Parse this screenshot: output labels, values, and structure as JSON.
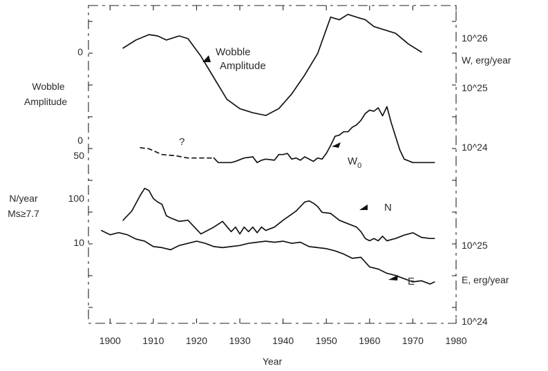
{
  "chart_data": {
    "type": "line",
    "xlabel": "Year",
    "xlim": [
      1895,
      1980
    ],
    "xticks": [
      1900,
      1910,
      1920,
      1930,
      1940,
      1950,
      1960,
      1970,
      1980
    ],
    "xtick_labels": [
      "1900",
      "1910",
      "1920",
      "1930",
      "1940",
      "1950",
      "1960",
      "1970",
      "1980"
    ],
    "left_axis": {
      "groups": [
        {
          "title": [
            "Wobble",
            "Amplitude"
          ],
          "ticks": [
            "0",
            "0"
          ]
        },
        {
          "title": [
            "N/year",
            "Ms≥7.7"
          ],
          "ticks": [
            "50",
            "100",
            "10"
          ]
        }
      ]
    },
    "right_axis": {
      "groups": [
        {
          "title": "W, erg/year",
          "ticks": [
            "10^26",
            "10^25",
            "10^24"
          ]
        },
        {
          "title": "E, erg/year",
          "ticks": [
            "10^25",
            "10^24"
          ]
        }
      ]
    },
    "series": [
      {
        "name": "Wobble Amplitude",
        "label_lines": [
          "Wobble",
          "Amplitude"
        ],
        "x": [
          1903,
          1906,
          1909,
          1911,
          1913,
          1916,
          1918,
          1921,
          1924,
          1927,
          1930,
          1933,
          1936,
          1939,
          1942,
          1945,
          1948,
          1951,
          1953,
          1955,
          1957,
          1959,
          1961,
          1963,
          1966,
          1969,
          1972
        ],
        "y": [
          0.72,
          0.78,
          0.82,
          0.81,
          0.78,
          0.81,
          0.79,
          0.66,
          0.5,
          0.34,
          0.27,
          0.24,
          0.22,
          0.27,
          0.38,
          0.52,
          0.68,
          0.95,
          0.93,
          0.97,
          0.95,
          0.93,
          0.88,
          0.86,
          0.83,
          0.75,
          0.69
        ]
      },
      {
        "name": "Wo",
        "label": "W",
        "label_sub": "0",
        "uncertain_label": "?",
        "x_dashed_end": 1924,
        "x": [
          1907,
          1909,
          1912,
          1915,
          1918,
          1921,
          1924,
          1925,
          1928,
          1929,
          1931,
          1933,
          1934,
          1935,
          1936,
          1938,
          1939,
          1940,
          1941,
          1942,
          1943,
          1944,
          1945,
          1946,
          1947,
          1948,
          1949,
          1950,
          1951,
          1952,
          1953,
          1954,
          1955,
          1956,
          1957,
          1958,
          1959,
          1960,
          1961,
          1962,
          1963,
          1964,
          1965,
          1967,
          1968,
          1970,
          1972,
          1975
        ],
        "y": [
          0.28,
          0.27,
          0.22,
          0.21,
          0.19,
          0.19,
          0.19,
          0.15,
          0.15,
          0.16,
          0.19,
          0.2,
          0.15,
          0.17,
          0.18,
          0.17,
          0.22,
          0.22,
          0.23,
          0.18,
          0.19,
          0.17,
          0.2,
          0.18,
          0.16,
          0.19,
          0.18,
          0.23,
          0.3,
          0.38,
          0.39,
          0.42,
          0.42,
          0.46,
          0.48,
          0.52,
          0.58,
          0.61,
          0.6,
          0.63,
          0.56,
          0.64,
          0.5,
          0.26,
          0.18,
          0.15,
          0.15,
          0.15
        ]
      },
      {
        "name": "N",
        "label": "N",
        "x": [
          1903,
          1905,
          1907,
          1908,
          1909,
          1910,
          1911,
          1912,
          1913,
          1914,
          1916,
          1918,
          1921,
          1924,
          1926,
          1928,
          1929,
          1930,
          1931,
          1932,
          1933,
          1934,
          1935,
          1936,
          1938,
          1940,
          1943,
          1945,
          1946,
          1947,
          1948,
          1949,
          1951,
          1953,
          1955,
          1957,
          1958,
          1959,
          1960,
          1961,
          1962,
          1963,
          1964,
          1966,
          1968,
          1970,
          1972,
          1974,
          1975
        ],
        "y": [
          0.28,
          0.36,
          0.5,
          0.56,
          0.54,
          0.47,
          0.44,
          0.42,
          0.32,
          0.3,
          0.27,
          0.28,
          0.16,
          0.22,
          0.27,
          0.18,
          0.22,
          0.16,
          0.22,
          0.18,
          0.22,
          0.17,
          0.22,
          0.19,
          0.22,
          0.28,
          0.36,
          0.44,
          0.45,
          0.43,
          0.4,
          0.35,
          0.34,
          0.28,
          0.25,
          0.22,
          0.18,
          0.12,
          0.1,
          0.12,
          0.1,
          0.14,
          0.1,
          0.12,
          0.15,
          0.17,
          0.13,
          0.12,
          0.12
        ]
      },
      {
        "name": "E",
        "label": "E",
        "x": [
          1898,
          1900,
          1902,
          1904,
          1906,
          1908,
          1910,
          1912,
          1914,
          1916,
          1918,
          1920,
          1922,
          1924,
          1926,
          1928,
          1930,
          1932,
          1934,
          1936,
          1938,
          1940,
          1942,
          1944,
          1946,
          1948,
          1950,
          1952,
          1954,
          1956,
          1958,
          1960,
          1962,
          1964,
          1966,
          1968,
          1970,
          1972,
          1974,
          1975
        ],
        "y": [
          0.88,
          0.84,
          0.86,
          0.84,
          0.8,
          0.78,
          0.73,
          0.72,
          0.7,
          0.74,
          0.76,
          0.78,
          0.76,
          0.73,
          0.72,
          0.73,
          0.74,
          0.76,
          0.77,
          0.78,
          0.77,
          0.78,
          0.76,
          0.77,
          0.73,
          0.72,
          0.71,
          0.69,
          0.66,
          0.62,
          0.63,
          0.54,
          0.52,
          0.48,
          0.46,
          0.43,
          0.4,
          0.41,
          0.38,
          0.4
        ]
      }
    ],
    "grid": false,
    "legend": "none (series labeled in-plot)"
  }
}
